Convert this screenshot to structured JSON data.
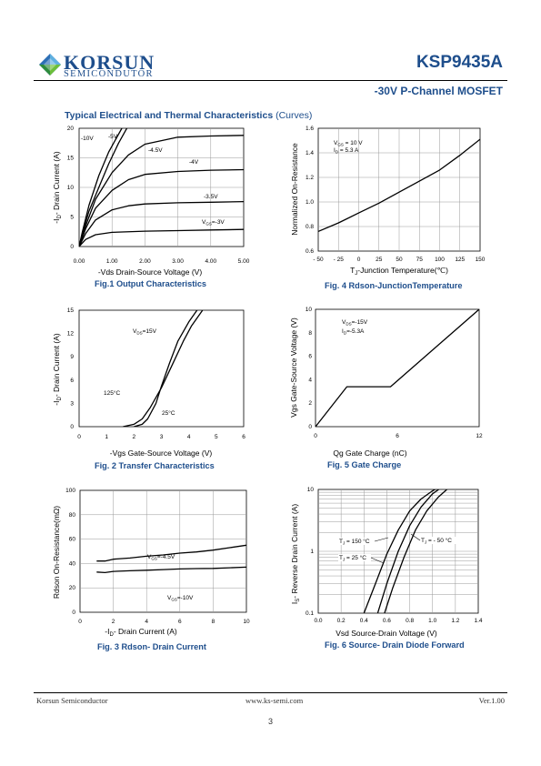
{
  "header": {
    "brand": "KORSUN",
    "brand_sub": "SEMICONDUTOR",
    "part_number": "KSP9435A",
    "subtitle": "-30V P-Channel MOSFET",
    "accent_color": "#1e4e8c",
    "logo": "korsun-diamond-logo"
  },
  "section": {
    "title_bold": "Typical Electrical and Thermal Characteristics",
    "title_plain": "(Curves)"
  },
  "figures": {
    "fig1": {
      "caption": "Fig.1 Output Characteristics",
      "xlabel": "-Vds Drain-Source Voltage (V)",
      "ylabel": "-I",
      "ylabel_sub": "D",
      "ylabel_rest": "- Drain Current (A)",
      "xticks": [
        "0.00",
        "1.00",
        "2.00",
        "3.00",
        "4.00",
        "5.00"
      ],
      "yticks": [
        "0",
        "5",
        "10",
        "15",
        "20"
      ],
      "curve_labels": [
        "-10V",
        "-5V",
        "-4.5V",
        "-4V",
        "-3.5V",
        "V",
        "GS",
        "=-3V"
      ]
    },
    "fig2": {
      "caption": "Fig. 2 Transfer Characteristics",
      "xlabel": "-Vgs Gate-Source Voltage (V)",
      "ylabel": "-I",
      "ylabel_sub": "D",
      "ylabel_rest": "- Drain Current (A)",
      "xticks": [
        "0",
        "1",
        "2",
        "3",
        "4",
        "5",
        "6"
      ],
      "yticks": [
        "0",
        "3",
        "6",
        "9",
        "12",
        "15"
      ],
      "ann_vds": "V",
      "ann_vds_sub": "DS",
      "ann_vds_rest": "=15V",
      "ann_t1": "125°C",
      "ann_t2": "25°C"
    },
    "fig3": {
      "caption": "Fig. 3 Rdson- Drain Current",
      "xlabel": "-I",
      "xlabel_sub": "D",
      "xlabel_rest": "- Drain Current (A)",
      "ylabel": "Rdson On-Resistance(m",
      "ylabel_omega": "Ω",
      "ylabel_end": ")",
      "xticks": [
        "0",
        "2",
        "4",
        "6",
        "8",
        "10"
      ],
      "yticks": [
        "0",
        "20",
        "40",
        "60",
        "80",
        "100"
      ],
      "ann_a": "V",
      "ann_a_sub": "GS",
      "ann_a_rest": "=-4.5V",
      "ann_b": "V",
      "ann_b_sub": "GS",
      "ann_b_rest": "=-10V"
    },
    "fig4": {
      "caption": "Fig. 4 Rdson-JunctionTemperature",
      "xlabel": "T",
      "xlabel_sub": "J",
      "xlabel_rest": "-Junction Temperature(℃)",
      "ylabel": "Normalized On-Resistance",
      "xticks": [
        "- 50",
        "- 25",
        "0",
        "25",
        "50",
        "75",
        "100",
        "125",
        "150"
      ],
      "yticks": [
        "0.6",
        "0.8",
        "1.0",
        "1.2",
        "1.4",
        "1.6"
      ],
      "ann_1": "V",
      "ann_1_sub": "GS",
      "ann_1_rest": " = 10 V",
      "ann_2": "I",
      "ann_2_sub": "D",
      "ann_2_rest": " = 5.3 A"
    },
    "fig5": {
      "caption": "Fig. 5 Gate Charge",
      "xlabel": "Qg Gate Charge (nC)",
      "ylabel": "Vgs Gate-Source Voltage (V)",
      "xticks": [
        "0",
        "6",
        "12"
      ],
      "yticks": [
        "0",
        "2",
        "4",
        "6",
        "8",
        "10"
      ],
      "ann_1": "V",
      "ann_1_sub": "DS",
      "ann_1_rest": "=-15V",
      "ann_2": "I",
      "ann_2_sub": "D",
      "ann_2_rest": "=-5.3A"
    },
    "fig6": {
      "caption": "Fig. 6 Source- Drain Diode Forward",
      "xlabel": "Vsd Source-Drain Voltage (V)",
      "ylabel": "I",
      "ylabel_sub": "S",
      "ylabel_rest": "- Reverse Drain Current (A)",
      "xticks": [
        "0.0",
        "0.2",
        "0.4",
        "0.6",
        "0.8",
        "1.0",
        "1.2",
        "1.4"
      ],
      "yticks": [
        "0.1",
        "1",
        "10"
      ],
      "ann_1": "T",
      "ann_1_sub": "J",
      "ann_1_rest": " = 150 °C",
      "ann_2": "T",
      "ann_2_sub": "J",
      "ann_2_rest": " = 25 °C",
      "ann_3": "T",
      "ann_3_sub": "J",
      "ann_3_rest": " = - 50 °C"
    }
  },
  "footer": {
    "company": "Korsun Semiconductor",
    "website": "www.ks-semi.com",
    "version": "Ver.1.00",
    "page": "3"
  },
  "chart_data": [
    {
      "type": "line",
      "title": "Fig.1 Output Characteristics",
      "xlabel": "-Vds Drain-Source Voltage (V)",
      "ylabel": "-ID- Drain Current (A)",
      "xlim": [
        0,
        5
      ],
      "ylim": [
        0,
        20
      ],
      "series": [
        {
          "name": "-10V",
          "x": [
            0,
            0.1,
            0.3,
            0.6,
            0.9,
            1.2,
            1.5
          ],
          "y": [
            0,
            2.5,
            7,
            12,
            16,
            19,
            22
          ]
        },
        {
          "name": "-5V",
          "x": [
            0,
            0.1,
            0.3,
            0.6,
            0.9,
            1.2,
            1.5
          ],
          "y": [
            0,
            2.2,
            6,
            10,
            14,
            17.5,
            20.5
          ]
        },
        {
          "name": "-4.5V",
          "x": [
            0,
            0.2,
            0.5,
            1,
            1.5,
            2,
            3,
            4,
            5
          ],
          "y": [
            0,
            3.5,
            8,
            12.5,
            15.5,
            17.3,
            18.5,
            18.7,
            18.8
          ]
        },
        {
          "name": "-4V",
          "x": [
            0,
            0.2,
            0.5,
            1,
            1.5,
            2,
            3,
            4,
            5
          ],
          "y": [
            0,
            3,
            6.5,
            9.5,
            11.3,
            12.2,
            12.7,
            12.9,
            13.0
          ]
        },
        {
          "name": "-3.5V",
          "x": [
            0,
            0.2,
            0.5,
            1,
            1.5,
            2,
            3,
            4,
            5
          ],
          "y": [
            0,
            2.2,
            4.5,
            6.2,
            6.9,
            7.2,
            7.4,
            7.5,
            7.6
          ]
        },
        {
          "name": "VGS=-3V",
          "x": [
            0,
            0.2,
            0.5,
            1,
            2,
            3,
            4,
            5
          ],
          "y": [
            0,
            1.2,
            2.0,
            2.4,
            2.6,
            2.7,
            2.8,
            2.9
          ]
        }
      ]
    },
    {
      "type": "line",
      "title": "Fig. 2 Transfer Characteristics",
      "xlabel": "-Vgs Gate-Source Voltage (V)",
      "ylabel": "-ID- Drain Current (A)",
      "xlim": [
        0,
        6
      ],
      "ylim": [
        0,
        15
      ],
      "series": [
        {
          "name": "125°C",
          "x": [
            1.6,
            2.0,
            2.3,
            2.6,
            3.0,
            3.4,
            3.8,
            4.1,
            4.5
          ],
          "y": [
            0,
            0.3,
            1,
            2.5,
            5,
            8,
            11,
            13,
            15
          ]
        },
        {
          "name": "25°C",
          "x": [
            2.0,
            2.3,
            2.5,
            2.8,
            3.0,
            3.3,
            3.6,
            4.0,
            4.4
          ],
          "y": [
            0,
            0.3,
            1,
            3,
            5.2,
            8.2,
            11,
            13.5,
            15.5
          ]
        }
      ]
    },
    {
      "type": "line",
      "title": "Fig. 3 Rdson- Drain Current",
      "xlabel": "-ID- Drain Current (A)",
      "ylabel": "Rdson On-Resistance(mΩ)",
      "xlim": [
        0,
        10
      ],
      "ylim": [
        0,
        100
      ],
      "series": [
        {
          "name": "VGS=-4.5V",
          "x": [
            1,
            1.5,
            2,
            3,
            4,
            5,
            6,
            7,
            8,
            9,
            10
          ],
          "y": [
            42,
            42,
            43.5,
            44.5,
            46,
            47,
            48.5,
            49.5,
            51,
            53,
            55
          ]
        },
        {
          "name": "VGS=-10V",
          "x": [
            1,
            1.5,
            2,
            3,
            4,
            5,
            6,
            7,
            8,
            9,
            10
          ],
          "y": [
            33,
            32.5,
            33.5,
            34,
            34.5,
            35,
            35.5,
            35.8,
            36,
            36.5,
            37
          ]
        }
      ]
    },
    {
      "type": "line",
      "title": "Fig. 4 Rdson-JunctionTemperature",
      "xlabel": "TJ-Junction Temperature(℃)",
      "ylabel": "Normalized On-Resistance",
      "xlim": [
        -50,
        150
      ],
      "ylim": [
        0.6,
        1.6
      ],
      "series": [
        {
          "name": "VGS = 10 V, ID = 5.3 A",
          "x": [
            -50,
            -25,
            0,
            25,
            50,
            75,
            100,
            125,
            150
          ],
          "y": [
            0.76,
            0.83,
            0.91,
            0.99,
            1.08,
            1.17,
            1.26,
            1.38,
            1.51
          ]
        }
      ]
    },
    {
      "type": "line",
      "title": "Fig. 5 Gate Charge",
      "xlabel": "Qg Gate Charge (nC)",
      "ylabel": "Vgs Gate-Source Voltage (V)",
      "xlim": [
        0,
        12
      ],
      "ylim": [
        0,
        10
      ],
      "series": [
        {
          "name": "VDS=-15V, ID=-5.3A",
          "x": [
            0,
            2.3,
            5.5,
            12
          ],
          "y": [
            0,
            3.4,
            3.4,
            10
          ]
        }
      ]
    },
    {
      "type": "line",
      "title": "Fig. 6 Source- Drain Diode Forward",
      "xlabel": "Vsd Source-Drain Voltage (V)",
      "ylabel": "IS- Reverse Drain Current (A)",
      "xlim": [
        0,
        1.4
      ],
      "ylim": [
        0.1,
        10
      ],
      "yscale": "log",
      "series": [
        {
          "name": "TJ = 150 °C",
          "x": [
            0.4,
            0.5,
            0.6,
            0.7,
            0.8,
            0.9,
            1.0,
            1.1
          ],
          "y": [
            0.1,
            0.3,
            0.9,
            2.2,
            4.5,
            7,
            9.5,
            12
          ]
        },
        {
          "name": "TJ = 25 °C",
          "x": [
            0.52,
            0.6,
            0.7,
            0.8,
            0.9,
            1.0,
            1.1
          ],
          "y": [
            0.1,
            0.3,
            1.0,
            2.6,
            5.2,
            8.5,
            11.5
          ]
        },
        {
          "name": "TJ = - 50 °C",
          "x": [
            0.58,
            0.65,
            0.75,
            0.85,
            0.95,
            1.05,
            1.15
          ],
          "y": [
            0.1,
            0.25,
            0.8,
            2.2,
            4.5,
            7.5,
            11
          ]
        }
      ]
    }
  ]
}
